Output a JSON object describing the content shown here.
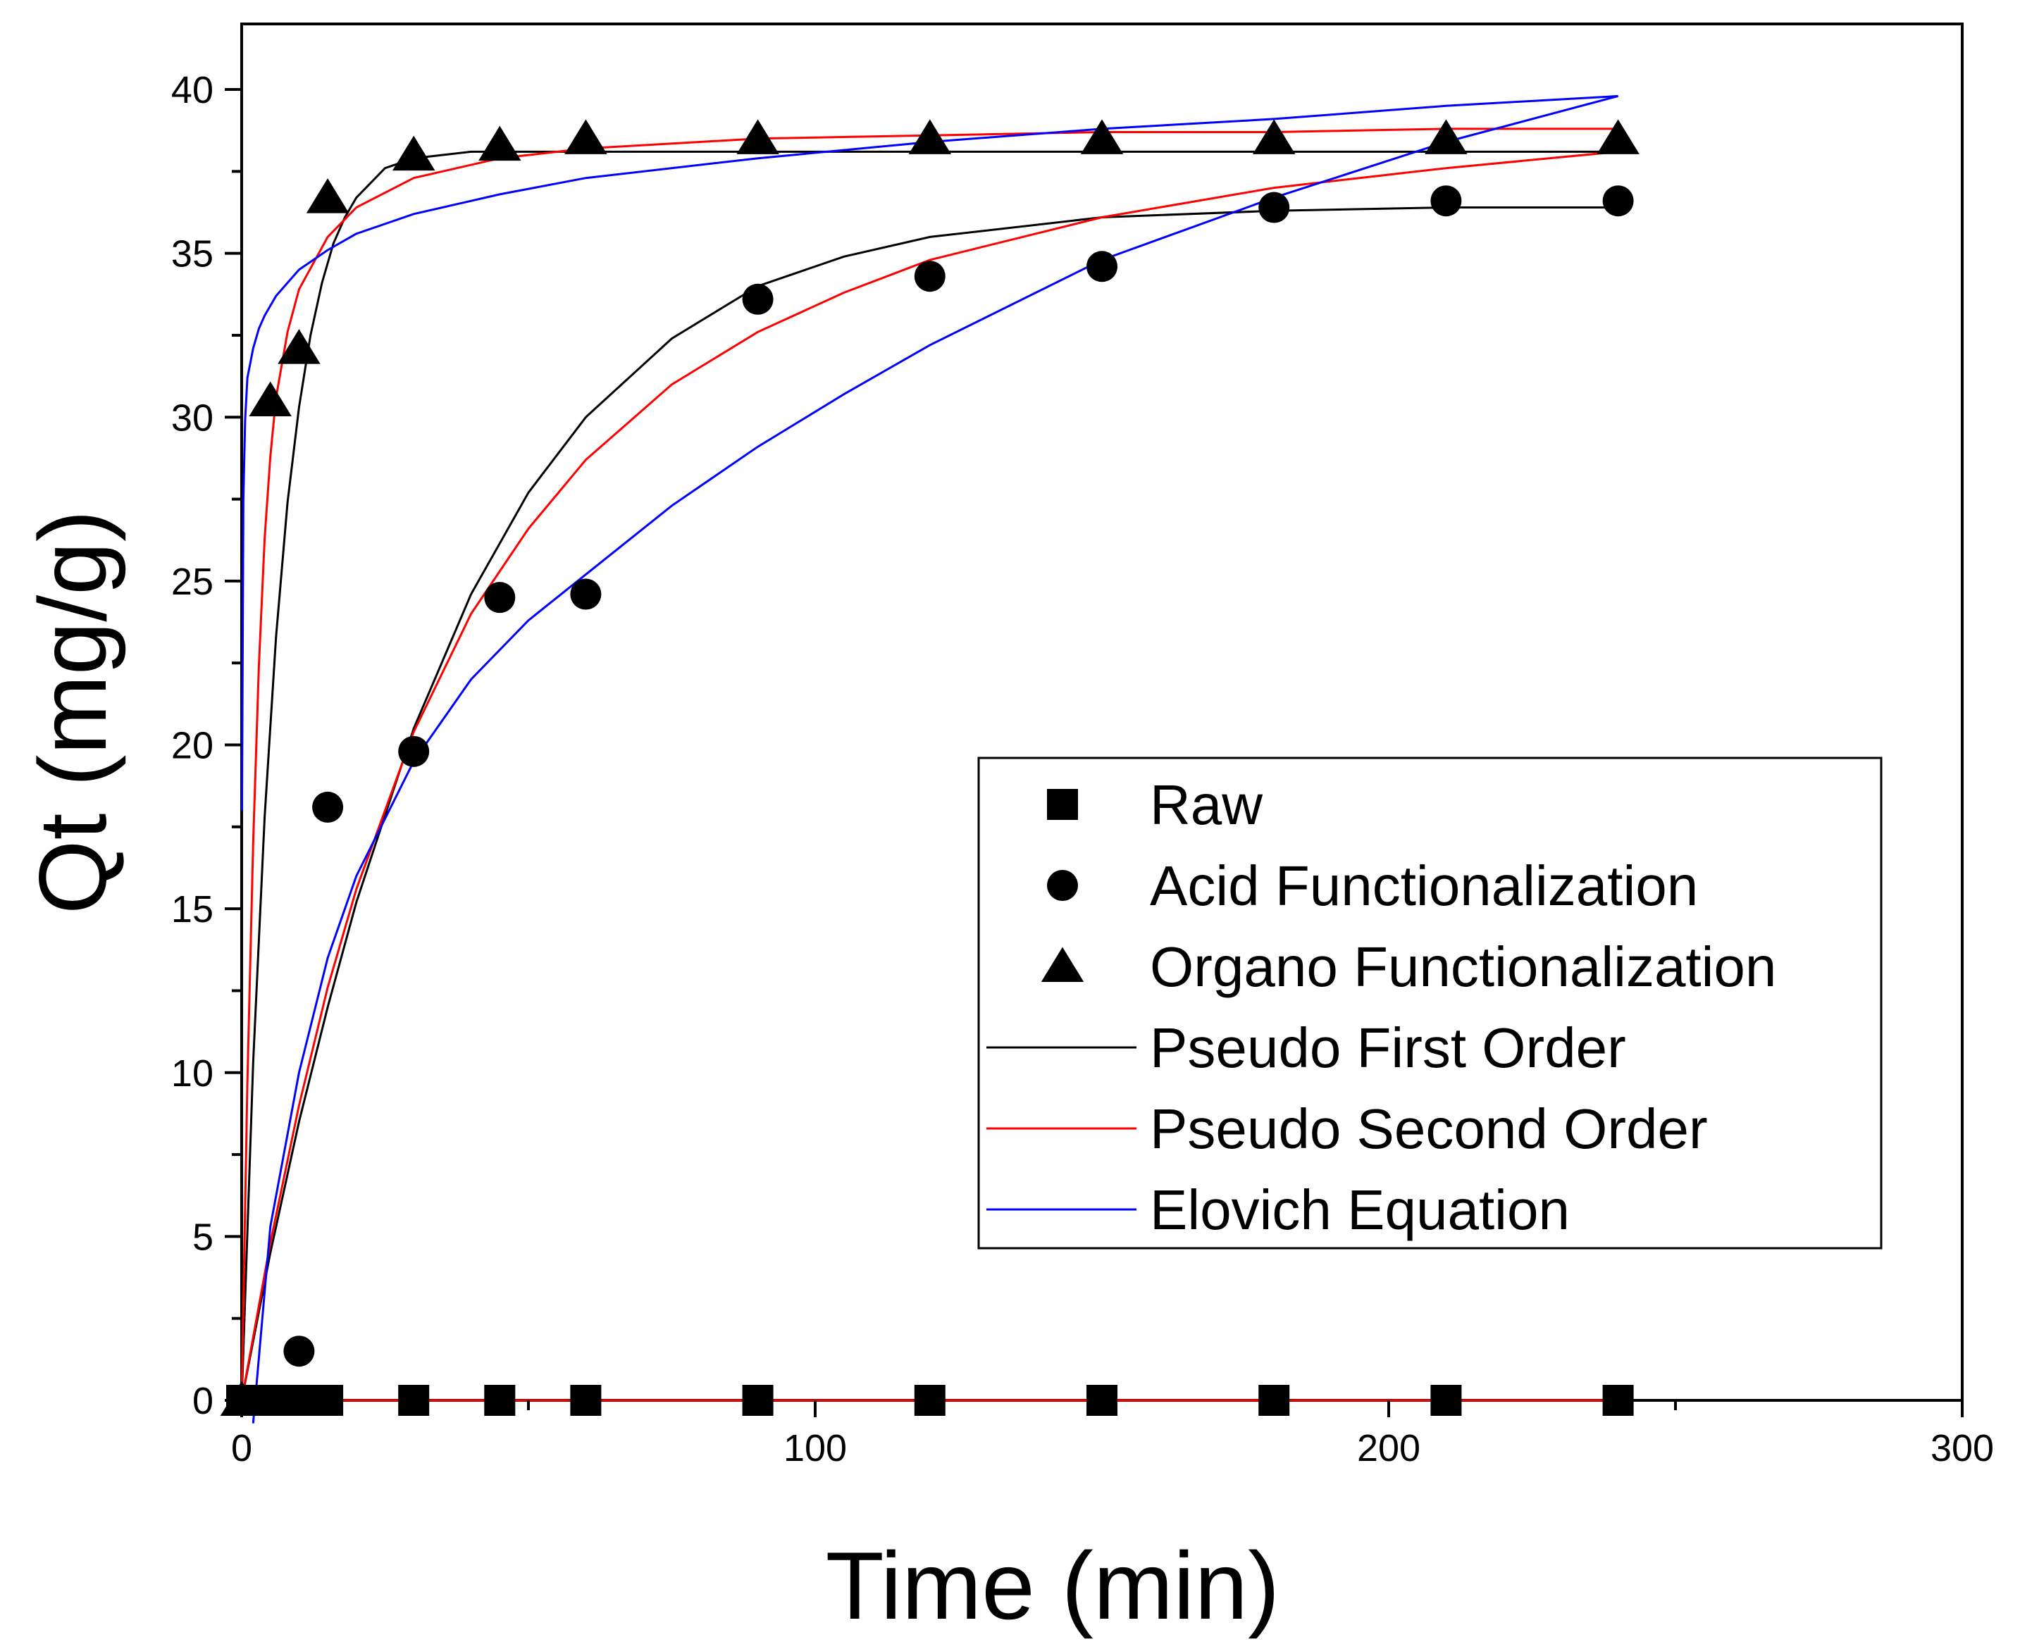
{
  "chart_data": {
    "type": "scatter",
    "title": "",
    "xlabel": "Time (min)",
    "ylabel": "Qt (mg/g)",
    "xlim": [
      0,
      300
    ],
    "ylim": [
      0,
      42
    ],
    "x_ticks": [
      0,
      100,
      200,
      300
    ],
    "y_ticks": [
      0,
      5,
      10,
      15,
      20,
      25,
      30,
      35,
      40
    ],
    "grid": false,
    "legend_position": "center-right",
    "series": [
      {
        "name": "Raw",
        "kind": "markers",
        "marker": "square",
        "color": "#000000",
        "x": [
          0,
          5,
          10,
          15,
          30,
          45,
          60,
          90,
          120,
          150,
          180,
          210,
          240
        ],
        "y": [
          0,
          0,
          0,
          0,
          0,
          0,
          0,
          0,
          0,
          0,
          0,
          0,
          0
        ]
      },
      {
        "name": "Acid Functionalization",
        "kind": "markers",
        "marker": "circle",
        "color": "#000000",
        "x": [
          0,
          5,
          10,
          15,
          30,
          45,
          60,
          90,
          120,
          150,
          180,
          210,
          240
        ],
        "y": [
          0,
          0,
          1.5,
          18.1,
          19.8,
          24.5,
          24.6,
          33.6,
          34.3,
          34.6,
          36.4,
          36.6,
          36.6
        ]
      },
      {
        "name": "Organo Functionalization",
        "kind": "markers",
        "marker": "triangle",
        "color": "#000000",
        "x": [
          0,
          5,
          10,
          15,
          30,
          45,
          60,
          90,
          120,
          150,
          180,
          210,
          240
        ],
        "y": [
          0,
          30.5,
          32.1,
          36.7,
          38.0,
          38.3,
          38.5,
          38.5,
          38.5,
          38.5,
          38.5,
          38.5,
          38.5
        ]
      },
      {
        "name": "Pseudo First Order",
        "kind": "line",
        "color": "#000000",
        "curves": [
          {
            "x": [
              0,
              2,
              4,
              6,
              8,
              10,
              12,
              14,
              16,
              18,
              20,
              25,
              30,
              40,
              60,
              90,
              120,
              150,
              180,
              210,
              240
            ],
            "y": [
              0,
              10.3,
              17.8,
              23.3,
              27.4,
              30.3,
              32.5,
              34.1,
              35.3,
              36.1,
              36.7,
              37.6,
              37.9,
              38.1,
              38.1,
              38.1,
              38.1,
              38.1,
              38.1,
              38.1,
              38.1
            ]
          },
          {
            "x": [
              0,
              5,
              10,
              15,
              20,
              30,
              40,
              50,
              60,
              75,
              90,
              105,
              120,
              150,
              180,
              210,
              240
            ],
            "y": [
              0,
              4.5,
              8.5,
              12.0,
              15.2,
              20.5,
              24.6,
              27.7,
              30.0,
              32.4,
              34.0,
              34.9,
              35.5,
              36.1,
              36.3,
              36.4,
              36.4
            ]
          },
          {
            "x": [
              0,
              240
            ],
            "y": [
              0,
              0
            ]
          }
        ]
      },
      {
        "name": "Pseudo Second Order",
        "kind": "line",
        "color": "#ff0000",
        "curves": [
          {
            "x": [
              0,
              1,
              2,
              3,
              4,
              5,
              6,
              8,
              10,
              15,
              20,
              30,
              45,
              60,
              90,
              120,
              150,
              180,
              210,
              240
            ],
            "y": [
              0,
              9.7,
              17.0,
              22.4,
              26.3,
              28.8,
              30.6,
              32.6,
              33.9,
              35.5,
              36.4,
              37.3,
              37.9,
              38.2,
              38.5,
              38.6,
              38.7,
              38.7,
              38.8,
              38.8
            ]
          },
          {
            "x": [
              0,
              5,
              10,
              15,
              20,
              30,
              40,
              50,
              60,
              75,
              90,
              105,
              120,
              150,
              180,
              210,
              240
            ],
            "y": [
              0,
              4.8,
              9.0,
              12.6,
              15.6,
              20.4,
              24.0,
              26.6,
              28.7,
              31.0,
              32.6,
              33.8,
              34.8,
              36.1,
              37.0,
              37.6,
              38.1
            ]
          },
          {
            "x": [
              0,
              240
            ],
            "y": [
              0,
              0
            ]
          }
        ]
      },
      {
        "name": "Elovich Equation",
        "kind": "line",
        "color": "#0000ff",
        "curves": [
          {
            "x": [
              0.05,
              0.3,
              0.6,
              1,
              2,
              3,
              4,
              6,
              8,
              10,
              15,
              20,
              30,
              45,
              60,
              90,
              120,
              150,
              180,
              210,
              240
            ],
            "y": [
              18.0,
              27.5,
              29.9,
              31.2,
              32.1,
              32.7,
              33.1,
              33.7,
              34.1,
              34.5,
              35.1,
              35.6,
              36.2,
              36.8,
              37.3,
              37.9,
              38.4,
              38.8,
              39.1,
              39.5,
              39.8
            ]
          },
          {
            "x": [
              2,
              5,
              10,
              15,
              20,
              30,
              40,
              50,
              60,
              75,
              90,
              105,
              120,
              150,
              180,
              210,
              240
            ],
            "y": [
              -0.7,
              5.3,
              10.0,
              13.5,
              16.0,
              19.5,
              22.0,
              23.8,
              25.2,
              27.3,
              29.1,
              30.7,
              32.2,
              34.8,
              36.7,
              38.4,
              39.8
            ]
          }
        ]
      }
    ]
  }
}
